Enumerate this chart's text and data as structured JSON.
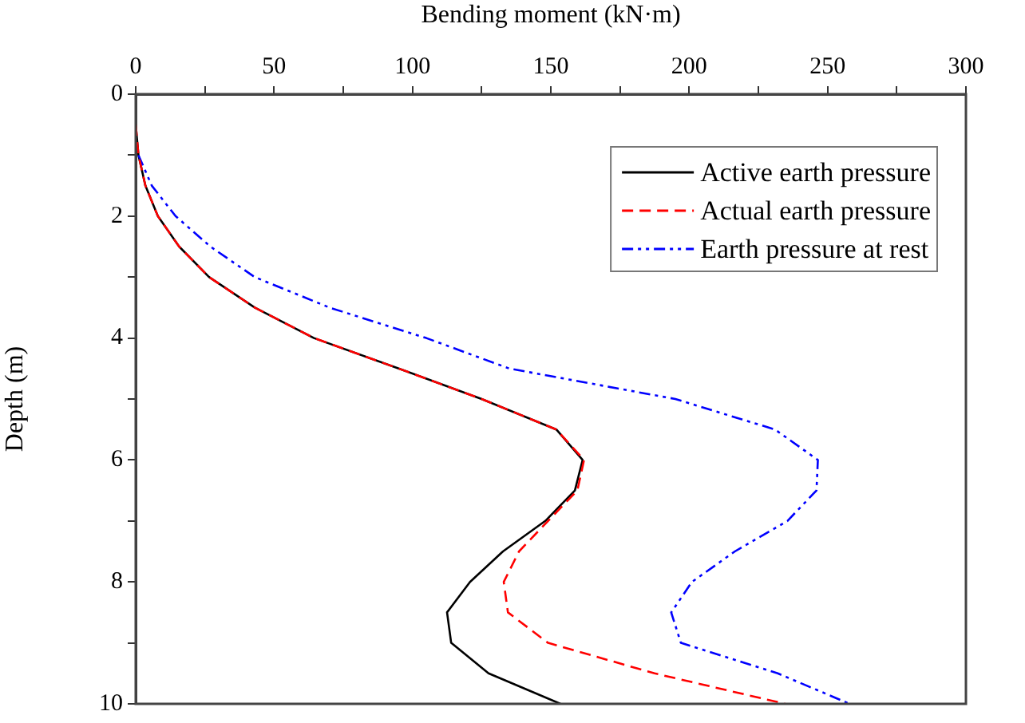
{
  "chart_data": {
    "type": "line",
    "xlabel": "Bending moment (kN·m)",
    "ylabel": "Depth (m)",
    "xlim": [
      0,
      300
    ],
    "xticks": [
      0,
      {
        "value": 25,
        "label": null
      },
      50,
      {
        "value": 75,
        "label": null
      },
      100,
      {
        "value": 125,
        "label": null
      },
      150,
      {
        "value": 175,
        "label": null
      },
      200,
      {
        "value": 225,
        "label": null
      },
      250,
      {
        "value": 275,
        "label": null
      },
      300
    ],
    "ylim": [
      10,
      0
    ],
    "yticks": [
      0,
      {
        "value": 1,
        "label": null
      },
      2,
      {
        "value": 3,
        "label": null
      },
      4,
      {
        "value": 5,
        "label": null
      },
      6,
      {
        "value": 7,
        "label": null
      },
      8,
      {
        "value": 9,
        "label": null
      },
      10
    ],
    "grid": false,
    "legend": "top right",
    "marker": "none",
    "series": [
      {
        "name": "Active earth pressure",
        "color": "#000000",
        "line_style": "solid",
        "x": [
          0,
          1,
          3.5,
          8,
          15.7,
          26.5,
          43,
          64.4,
          95,
          125,
          152,
          161.5,
          158.7,
          148,
          132.7,
          120.8,
          112.5,
          114,
          127.5,
          153.5
        ],
        "values": [
          0.5,
          1,
          1.5,
          2,
          2.5,
          3,
          3.5,
          4,
          4.5,
          5,
          5.5,
          6,
          6.5,
          7,
          7.5,
          8,
          8.5,
          9,
          9.5,
          10
        ]
      },
      {
        "name": "Actual earth pressure",
        "color": "#ff0000",
        "line_style": "dashed",
        "x": [
          0,
          1,
          3.5,
          8,
          15.7,
          26.5,
          43,
          64.4,
          95,
          125,
          152,
          162,
          159.6,
          149,
          138.5,
          133,
          134.5,
          149,
          187.5,
          234.7
        ],
        "values": [
          0.5,
          1,
          1.5,
          2,
          2.5,
          3,
          3.5,
          4,
          4.5,
          5,
          5.5,
          6,
          6.5,
          7,
          7.5,
          8,
          8.5,
          9,
          9.5,
          10
        ]
      },
      {
        "name": "Earth pressure at rest",
        "color": "#0000ff",
        "line_style": "dotted",
        "x": [
          1,
          5.8,
          14.4,
          27,
          43,
          70,
          105,
          135,
          195,
          231,
          246.5,
          246,
          235.5,
          216.5,
          201,
          193.5,
          197,
          232,
          258
        ],
        "values": [
          1,
          1.5,
          2,
          2.5,
          3,
          3.5,
          4,
          4.5,
          5,
          5.5,
          6,
          6.5,
          7,
          7.5,
          8,
          8.5,
          9,
          9.5,
          10
        ]
      }
    ]
  }
}
